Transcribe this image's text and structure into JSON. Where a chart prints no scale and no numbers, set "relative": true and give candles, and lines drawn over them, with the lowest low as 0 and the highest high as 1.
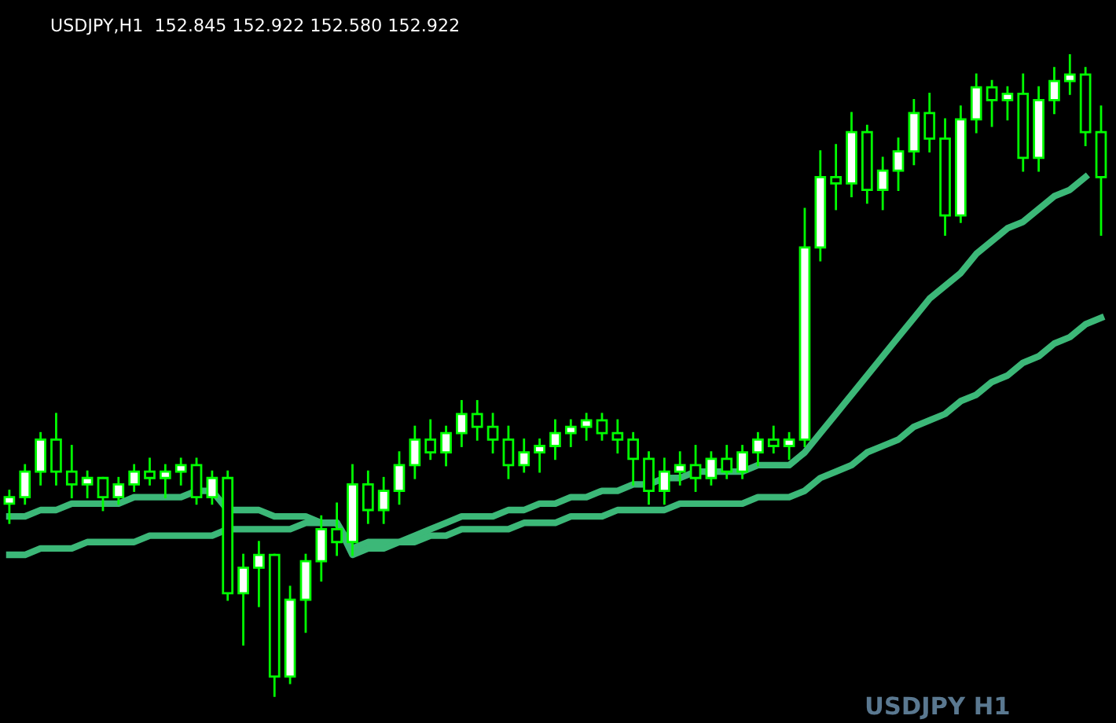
{
  "chart_data": {
    "type": "candlestick",
    "title": "USDJPY,H1  152.845 152.922 152.580 152.922",
    "relative": true,
    "categories": [
      null,
      null,
      null,
      null,
      null,
      null,
      null,
      null,
      null,
      null,
      null,
      null,
      null,
      null,
      null,
      null,
      null,
      null,
      null,
      null,
      null,
      null,
      null,
      null,
      null,
      null,
      null,
      null,
      null,
      null,
      null,
      null,
      null,
      null,
      null,
      null,
      null,
      null,
      null,
      null,
      null,
      null,
      null,
      null,
      null,
      null,
      null,
      null,
      null,
      null,
      null,
      null,
      null,
      null,
      null,
      null,
      null,
      null,
      null,
      null,
      null,
      null,
      null,
      null,
      null,
      null,
      null,
      null,
      null,
      null,
      null
    ],
    "ohlc": [
      [
        0.3,
        0.32,
        0.27,
        0.31
      ],
      [
        0.31,
        0.36,
        0.3,
        0.35
      ],
      [
        0.35,
        0.41,
        0.33,
        0.4
      ],
      [
        0.4,
        0.44,
        0.33,
        0.35
      ],
      [
        0.35,
        0.39,
        0.31,
        0.33
      ],
      [
        0.33,
        0.35,
        0.31,
        0.34
      ],
      [
        0.34,
        0.34,
        0.29,
        0.31
      ],
      [
        0.31,
        0.34,
        0.3,
        0.33
      ],
      [
        0.33,
        0.36,
        0.32,
        0.35
      ],
      [
        0.35,
        0.37,
        0.33,
        0.34
      ],
      [
        0.34,
        0.36,
        0.31,
        0.35
      ],
      [
        0.35,
        0.37,
        0.33,
        0.36
      ],
      [
        0.36,
        0.37,
        0.3,
        0.31
      ],
      [
        0.31,
        0.35,
        0.3,
        0.34
      ],
      [
        0.34,
        0.35,
        0.15,
        0.16
      ],
      [
        0.16,
        0.22,
        0.08,
        0.2
      ],
      [
        0.2,
        0.24,
        0.14,
        0.22
      ],
      [
        0.22,
        0.22,
        0.0,
        0.03
      ],
      [
        0.03,
        0.17,
        0.02,
        0.15
      ],
      [
        0.15,
        0.22,
        0.1,
        0.21
      ],
      [
        0.21,
        0.28,
        0.18,
        0.26
      ],
      [
        0.26,
        0.3,
        0.22,
        0.24
      ],
      [
        0.24,
        0.36,
        0.22,
        0.33
      ],
      [
        0.33,
        0.35,
        0.27,
        0.29
      ],
      [
        0.29,
        0.34,
        0.27,
        0.32
      ],
      [
        0.32,
        0.38,
        0.3,
        0.36
      ],
      [
        0.36,
        0.42,
        0.34,
        0.4
      ],
      [
        0.4,
        0.43,
        0.37,
        0.38
      ],
      [
        0.38,
        0.42,
        0.36,
        0.41
      ],
      [
        0.41,
        0.46,
        0.39,
        0.44
      ],
      [
        0.44,
        0.46,
        0.4,
        0.42
      ],
      [
        0.42,
        0.44,
        0.38,
        0.4
      ],
      [
        0.4,
        0.42,
        0.34,
        0.36
      ],
      [
        0.36,
        0.4,
        0.35,
        0.38
      ],
      [
        0.38,
        0.4,
        0.35,
        0.39
      ],
      [
        0.39,
        0.43,
        0.37,
        0.41
      ],
      [
        0.41,
        0.43,
        0.39,
        0.42
      ],
      [
        0.42,
        0.44,
        0.4,
        0.43
      ],
      [
        0.43,
        0.44,
        0.4,
        0.41
      ],
      [
        0.41,
        0.43,
        0.38,
        0.4
      ],
      [
        0.4,
        0.41,
        0.33,
        0.37
      ],
      [
        0.37,
        0.38,
        0.3,
        0.32
      ],
      [
        0.32,
        0.37,
        0.3,
        0.35
      ],
      [
        0.35,
        0.38,
        0.33,
        0.36
      ],
      [
        0.36,
        0.39,
        0.32,
        0.34
      ],
      [
        0.34,
        0.38,
        0.33,
        0.37
      ],
      [
        0.37,
        0.39,
        0.34,
        0.35
      ],
      [
        0.35,
        0.39,
        0.34,
        0.38
      ],
      [
        0.38,
        0.41,
        0.36,
        0.4
      ],
      [
        0.4,
        0.42,
        0.38,
        0.39
      ],
      [
        0.39,
        0.41,
        0.37,
        0.4
      ],
      [
        0.4,
        0.76,
        0.39,
        0.7
      ],
      [
        0.7,
        0.85,
        0.68,
        0.81
      ],
      [
        0.81,
        0.86,
        0.76,
        0.8
      ],
      [
        0.8,
        0.91,
        0.78,
        0.88
      ],
      [
        0.88,
        0.89,
        0.77,
        0.79
      ],
      [
        0.79,
        0.84,
        0.76,
        0.82
      ],
      [
        0.82,
        0.87,
        0.79,
        0.85
      ],
      [
        0.85,
        0.93,
        0.83,
        0.91
      ],
      [
        0.91,
        0.94,
        0.85,
        0.87
      ],
      [
        0.87,
        0.9,
        0.72,
        0.75
      ],
      [
        0.75,
        0.92,
        0.74,
        0.9
      ],
      [
        0.9,
        0.97,
        0.88,
        0.95
      ],
      [
        0.95,
        0.96,
        0.89,
        0.93
      ],
      [
        0.93,
        0.95,
        0.9,
        0.94
      ],
      [
        0.94,
        0.97,
        0.82,
        0.84
      ],
      [
        0.84,
        0.95,
        0.82,
        0.93
      ],
      [
        0.93,
        0.98,
        0.91,
        0.96
      ],
      [
        0.96,
        1.0,
        0.94,
        0.97
      ],
      [
        0.97,
        0.98,
        0.86,
        0.88
      ],
      [
        0.88,
        0.92,
        0.72,
        0.81
      ]
    ],
    "series": [
      {
        "type": "line",
        "color": "#3cb878",
        "values": [
          0.28,
          0.28,
          0.29,
          0.29,
          0.3,
          0.3,
          0.3,
          0.3,
          0.31,
          0.31,
          0.31,
          0.31,
          0.32,
          0.32,
          0.29,
          0.29,
          0.29,
          0.28,
          0.28,
          0.28,
          0.27,
          0.27,
          0.23,
          0.24,
          0.24,
          0.24,
          0.25,
          0.26,
          0.27,
          0.28,
          0.28,
          0.28,
          0.29,
          0.29,
          0.3,
          0.3,
          0.31,
          0.31,
          0.32,
          0.32,
          0.33,
          0.33,
          0.34,
          0.34,
          0.35,
          0.35,
          0.35,
          0.35,
          0.36,
          0.36,
          0.36,
          0.38,
          0.41,
          0.44,
          0.47,
          0.5,
          0.53,
          0.56,
          0.59,
          0.62,
          0.64,
          0.66,
          0.69,
          0.71,
          0.73,
          0.74,
          0.76,
          0.78,
          0.79,
          0.81,
          null
        ]
      },
      {
        "type": "line",
        "color": "#3cb878",
        "values": [
          0.22,
          0.22,
          0.23,
          0.23,
          0.23,
          0.24,
          0.24,
          0.24,
          0.24,
          0.25,
          0.25,
          0.25,
          0.25,
          0.25,
          0.26,
          0.26,
          0.26,
          0.26,
          0.26,
          0.27,
          0.27,
          0.27,
          0.22,
          0.23,
          0.23,
          0.24,
          0.24,
          0.25,
          0.25,
          0.26,
          0.26,
          0.26,
          0.26,
          0.27,
          0.27,
          0.27,
          0.28,
          0.28,
          0.28,
          0.29,
          0.29,
          0.29,
          0.29,
          0.3,
          0.3,
          0.3,
          0.3,
          0.3,
          0.31,
          0.31,
          0.31,
          0.32,
          0.34,
          0.35,
          0.36,
          0.38,
          0.39,
          0.4,
          0.42,
          0.43,
          0.44,
          0.46,
          0.47,
          0.49,
          0.5,
          0.52,
          0.53,
          0.55,
          0.56,
          0.58,
          0.59
        ]
      }
    ],
    "annotations": [
      "USDJPY H1"
    ]
  }
}
